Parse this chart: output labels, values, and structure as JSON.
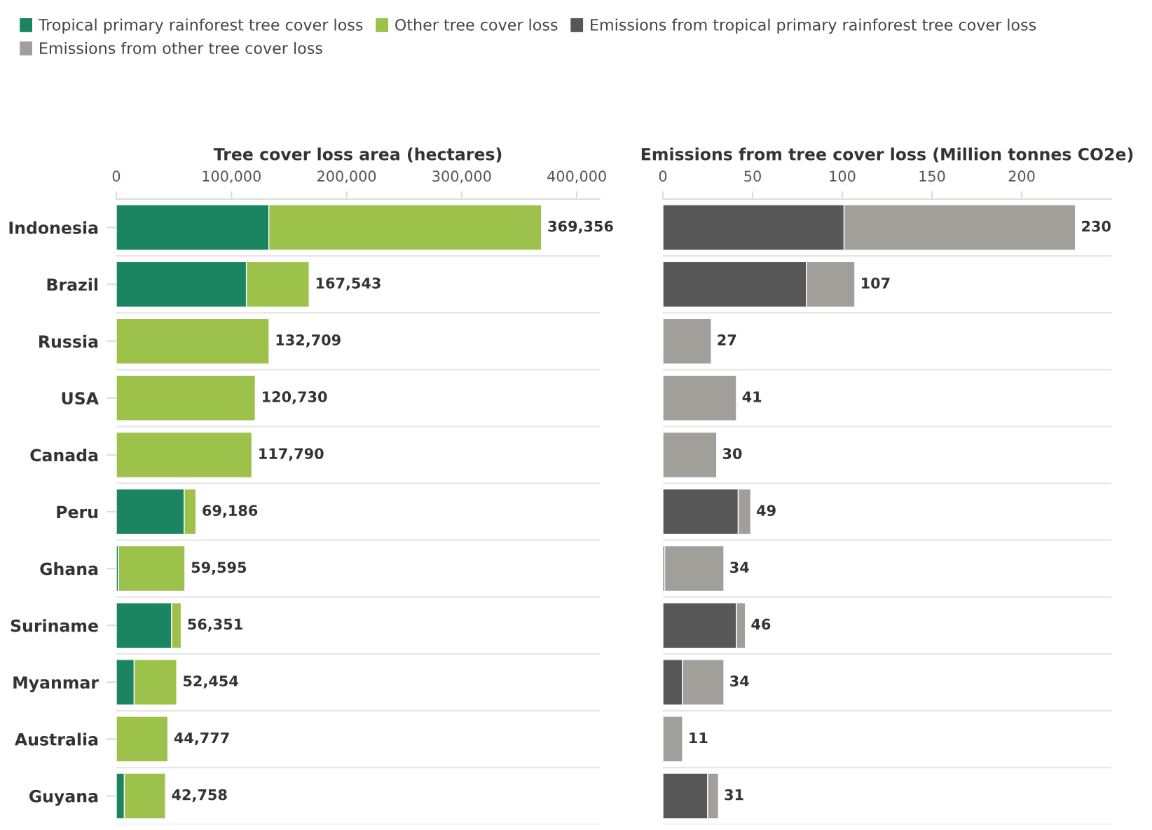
{
  "chart_data": [
    {
      "type": "bar",
      "orientation": "horizontal",
      "stacked": true,
      "title": "Tree cover loss area (hectares)",
      "categories": [
        "Indonesia",
        "Brazil",
        "Russia",
        "USA",
        "Canada",
        "Peru",
        "Ghana",
        "Suriname",
        "Myanmar",
        "Australia",
        "Guyana"
      ],
      "series": [
        {
          "name": "Tropical primary rainforest tree cover loss",
          "color": "#1b8461",
          "values": [
            132500,
            113000,
            0,
            0,
            0,
            59000,
            2000,
            48000,
            15500,
            0,
            7000
          ]
        },
        {
          "name": "Other tree cover loss",
          "color": "#9cc24b",
          "values": [
            236856,
            54543,
            132709,
            120730,
            117790,
            10186,
            57595,
            8351,
            36954,
            44777,
            35758
          ]
        }
      ],
      "totals": [
        "369,356",
        "167,543",
        "132,709",
        "120,730",
        "117,790",
        "69,186",
        "59,595",
        "56,351",
        "52,454",
        "44,777",
        "42,758"
      ],
      "xlim": [
        0,
        420000
      ],
      "xticks": [
        0,
        {
          "value": 100000,
          "label": "100,000"
        },
        {
          "value": 200000,
          "label": "200,000"
        },
        {
          "value": 300000,
          "label": "300,000"
        },
        {
          "value": 400000,
          "label": "400,000"
        }
      ],
      "legend": "top"
    },
    {
      "type": "bar",
      "orientation": "horizontal",
      "stacked": true,
      "title": "Emissions from tree cover loss (Million tonnes CO2e)",
      "categories": [
        null,
        null,
        null,
        null,
        null,
        null,
        null,
        null,
        null,
        null,
        null
      ],
      "series": [
        {
          "name": "Emissions from tropical primary rainforest tree cover loss",
          "color": "#575757",
          "values": [
            101,
            80,
            0,
            0,
            0,
            42,
            1,
            41,
            11,
            0,
            25
          ]
        },
        {
          "name": "Emissions from other tree cover loss",
          "color": "#a09f99",
          "values": [
            129,
            27,
            27,
            41,
            30,
            7,
            33,
            5,
            23,
            11,
            6
          ]
        }
      ],
      "totals": [
        "230",
        "107",
        "27",
        "41",
        "30",
        "49",
        "34",
        "46",
        "34",
        "11",
        "31"
      ],
      "xlim": [
        0,
        250
      ],
      "xticks": [
        0,
        50,
        100,
        150,
        200
      ],
      "tick_labels": "x",
      "legend": "top"
    }
  ]
}
